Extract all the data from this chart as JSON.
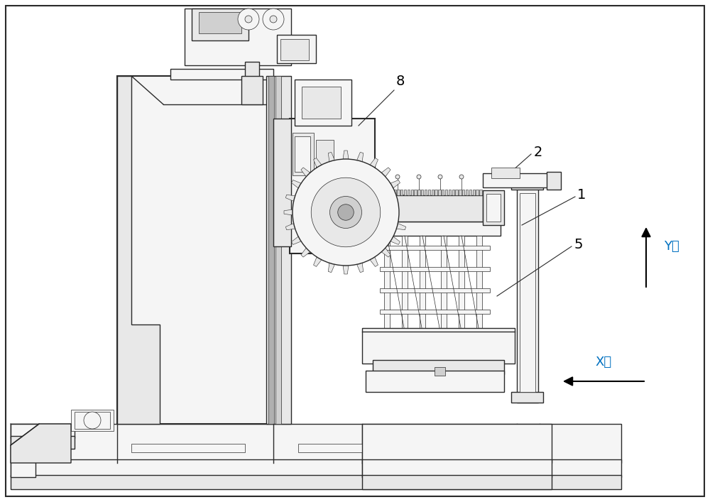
{
  "bg_color": "#ffffff",
  "lc": "#2a2a2a",
  "lc_blue": "#0070C0",
  "lw1": 1.0,
  "lw2": 1.5,
  "lw_thin": 0.5,
  "fc_light": "#f5f5f5",
  "fc_mid": "#e8e8e8",
  "fc_dark": "#d0d0d0",
  "fc_darkest": "#b0b0b0"
}
